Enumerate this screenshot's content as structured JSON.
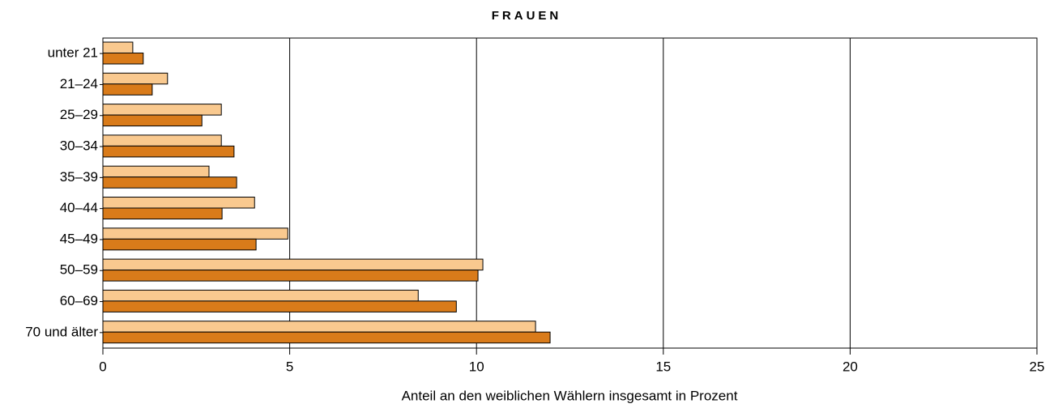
{
  "chart_data": {
    "type": "barh",
    "title": "FRAUEN",
    "xlabel": "Anteil an den weiblichen Wählern insgesamt in Prozent",
    "categories": [
      "unter 21",
      "21–24",
      "25–29",
      "30–34",
      "35–39",
      "40–44",
      "45–49",
      "50–59",
      "60–69",
      "70 und älter"
    ],
    "series": [
      {
        "color": "#f9c98f",
        "values": [
          0.8,
          1.73,
          3.17,
          3.17,
          2.84,
          4.06,
          4.95,
          10.17,
          8.44,
          11.58
        ]
      },
      {
        "color": "#d97b1a",
        "values": [
          1.08,
          1.32,
          2.65,
          3.51,
          3.58,
          3.19,
          4.1,
          10.04,
          9.46,
          11.97
        ]
      }
    ],
    "xlim": [
      0,
      25
    ],
    "xticks": [
      0,
      5,
      10,
      15,
      20,
      25
    ],
    "grid": true
  }
}
